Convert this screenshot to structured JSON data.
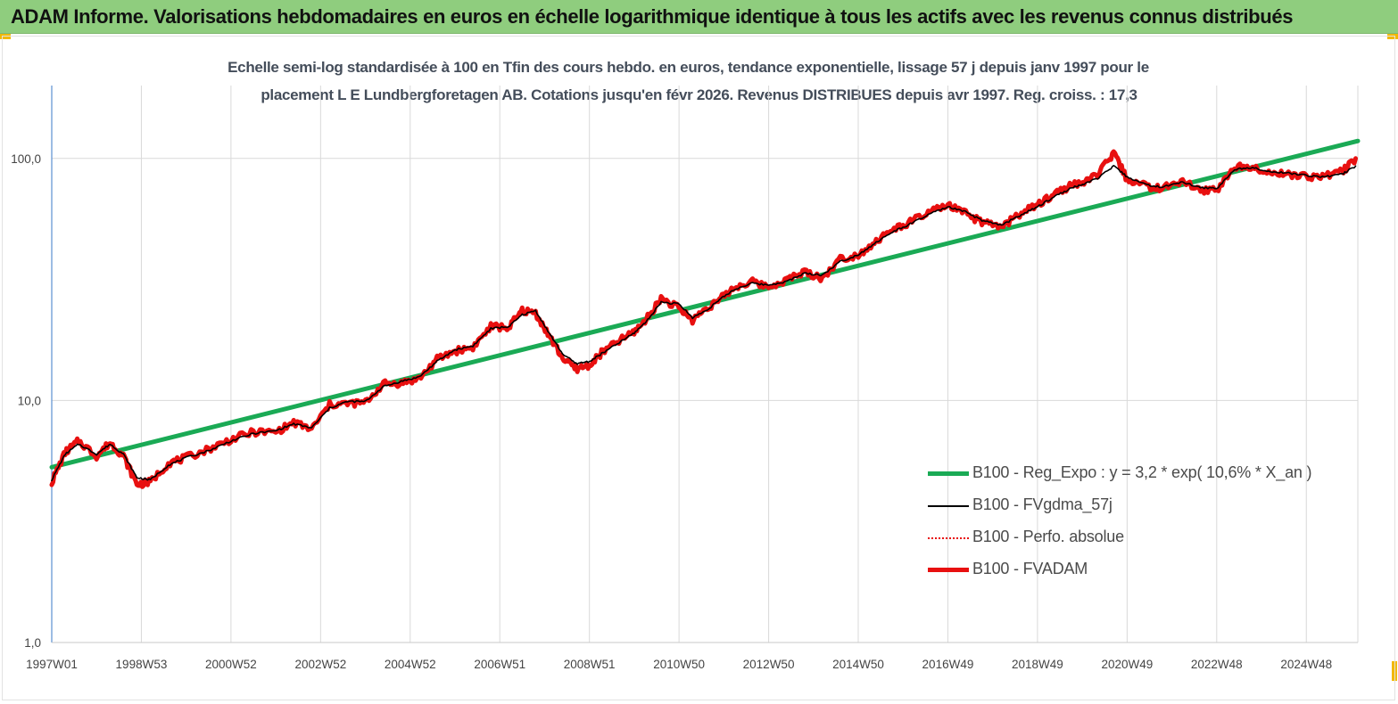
{
  "header": {
    "title": "ADAM Informe. Valorisations hebdomadaires en euros en échelle logarithmique identique à tous les actifs avec les revenus connus distribués",
    "background_color": "#8fcd7e",
    "accent_color": "#f2b800"
  },
  "chart_data": {
    "type": "line",
    "title": "Echelle semi-log standardisée à 100 en Tfin des cours hebdo. en euros, tendance exponentielle, lissage 57 j depuis janv 1997 pour le",
    "subtitle": "placement L E Lundbergforetagen AB. Cotations jusqu'en févr 2026. Revenus DISTRIBUES depuis avr 1997. Reg. croiss. : 17,3",
    "xlabel": "",
    "ylabel": "",
    "y_scale": "log",
    "ylim": [
      1,
      200
    ],
    "xlim": [
      1997.0,
      2026.15
    ],
    "grid": {
      "vertical": true,
      "horizontal": true
    },
    "legend_position": "bottom-right",
    "y_ticks": [
      {
        "value": 1,
        "label": "1,0"
      },
      {
        "value": 10,
        "label": "10,0"
      },
      {
        "value": 100,
        "label": "100,0"
      }
    ],
    "x_ticks": [
      {
        "value": 1997.0,
        "label": "1997W01"
      },
      {
        "value": 1999.0,
        "label": "1998W53"
      },
      {
        "value": 2001.0,
        "label": "2000W52"
      },
      {
        "value": 2003.0,
        "label": "2002W52"
      },
      {
        "value": 2005.0,
        "label": "2004W52"
      },
      {
        "value": 2007.0,
        "label": "2006W51"
      },
      {
        "value": 2009.0,
        "label": "2008W51"
      },
      {
        "value": 2011.0,
        "label": "2010W50"
      },
      {
        "value": 2013.0,
        "label": "2012W50"
      },
      {
        "value": 2015.0,
        "label": "2014W50"
      },
      {
        "value": 2017.0,
        "label": "2016W49"
      },
      {
        "value": 2019.0,
        "label": "2018W49"
      },
      {
        "value": 2021.0,
        "label": "2020W49"
      },
      {
        "value": 2023.0,
        "label": "2022W48"
      },
      {
        "value": 2025.0,
        "label": "2024W48"
      }
    ],
    "series": [
      {
        "name": "B100 - Reg_Expo : y = 3,2 * exp( 10,6% *  X_an )",
        "color": "#1aaa55",
        "style": "thick-solid",
        "x": [
          1997.0,
          2026.15
        ],
        "values": [
          5.3,
          118
        ]
      },
      {
        "name": "B100 - FVgdma_57j",
        "color": "#000000",
        "style": "thin-solid",
        "x": [
          1997.0,
          1997.3,
          1997.6,
          1998.0,
          1998.3,
          1998.6,
          1998.9,
          1999.2,
          1999.6,
          2000.0,
          2000.5,
          2001.0,
          2001.5,
          2002.0,
          2002.4,
          2002.8,
          2003.2,
          2003.6,
          2004.0,
          2004.4,
          2004.8,
          2005.2,
          2005.6,
          2006.0,
          2006.4,
          2006.8,
          2007.2,
          2007.5,
          2007.8,
          2008.1,
          2008.4,
          2008.7,
          2009.0,
          2009.3,
          2009.7,
          2010.0,
          2010.3,
          2010.6,
          2011.0,
          2011.3,
          2011.6,
          2011.9,
          2012.2,
          2012.6,
          2013.0,
          2013.4,
          2013.8,
          2014.2,
          2014.6,
          2015.0,
          2015.4,
          2015.8,
          2016.2,
          2016.6,
          2017.0,
          2017.4,
          2017.8,
          2018.2,
          2018.6,
          2019.0,
          2019.4,
          2019.8,
          2020.1,
          2020.4,
          2020.7,
          2021.0,
          2021.4,
          2021.8,
          2022.2,
          2022.6,
          2023.0,
          2023.4,
          2023.8,
          2024.2,
          2024.6,
          2025.0,
          2025.4,
          2025.8,
          2026.1
        ],
        "values": [
          4.7,
          6.0,
          6.6,
          6.0,
          6.6,
          6.0,
          4.8,
          4.7,
          5.4,
          5.8,
          6.2,
          6.8,
          7.3,
          7.5,
          8.0,
          7.7,
          9.3,
          9.9,
          9.9,
          11.4,
          12.0,
          12.5,
          14.5,
          16.2,
          16.8,
          19.8,
          20.2,
          22.6,
          23.5,
          19.0,
          15.6,
          14.2,
          14.5,
          15.7,
          17.5,
          19.0,
          21.5,
          25.5,
          25.0,
          22.0,
          23.5,
          26.0,
          28.5,
          30.5,
          30.0,
          31.0,
          33.5,
          33.0,
          37.5,
          40.0,
          45.0,
          50.0,
          54.0,
          59.0,
          63.0,
          60.0,
          55.0,
          53.0,
          58.0,
          63.0,
          70.0,
          76.0,
          79.0,
          84.0,
          93.0,
          84.0,
          78.0,
          76.0,
          80.0,
          76.0,
          75.0,
          90.0,
          92.0,
          88.0,
          87.0,
          85.0,
          84.0,
          86.0,
          93.0
        ]
      },
      {
        "name": "B100 - Perfo. absolue",
        "color": "#e81010",
        "style": "dotted",
        "x": [
          1997.0,
          1997.3,
          1997.6,
          1998.0,
          1998.3,
          1998.6,
          1998.9,
          1999.2,
          1999.6,
          2000.0,
          2000.5,
          2001.0,
          2001.5,
          2002.0,
          2002.4,
          2002.8,
          2003.2,
          2003.6,
          2004.0,
          2004.4,
          2004.8,
          2005.2,
          2005.6,
          2006.0,
          2006.4,
          2006.8,
          2007.2,
          2007.5,
          2007.8,
          2008.1,
          2008.4,
          2008.7,
          2009.0,
          2009.3,
          2009.7,
          2010.0,
          2010.3,
          2010.6,
          2011.0,
          2011.3,
          2011.6,
          2011.9,
          2012.2,
          2012.6,
          2013.0,
          2013.4,
          2013.8,
          2014.2,
          2014.6,
          2015.0,
          2015.4,
          2015.8,
          2016.2,
          2016.6,
          2017.0,
          2017.4,
          2017.8,
          2018.2,
          2018.6,
          2019.0,
          2019.4,
          2019.8,
          2020.1,
          2020.4,
          2020.7,
          2021.0,
          2021.4,
          2021.8,
          2022.2,
          2022.6,
          2023.0,
          2023.4,
          2023.8,
          2024.2,
          2024.6,
          2025.0,
          2025.4,
          2025.8,
          2026.1
        ],
        "values": [
          4.6,
          6.1,
          6.8,
          5.9,
          6.7,
          5.9,
          4.5,
          4.6,
          5.5,
          5.8,
          6.3,
          6.9,
          7.4,
          7.4,
          8.1,
          7.6,
          9.6,
          9.7,
          9.8,
          11.7,
          11.8,
          12.3,
          14.8,
          16.0,
          16.6,
          20.2,
          20.0,
          23.5,
          23.0,
          18.5,
          15.0,
          13.5,
          14.0,
          15.9,
          17.8,
          19.2,
          22.0,
          26.5,
          24.0,
          21.5,
          24.0,
          26.0,
          29.0,
          31.0,
          29.5,
          31.5,
          34.0,
          32.0,
          38.5,
          40.0,
          45.5,
          51.0,
          55.0,
          60.0,
          64.0,
          59.0,
          54.0,
          52.0,
          59.0,
          64.0,
          72.0,
          78.0,
          80.0,
          88.0,
          105.0,
          82.0,
          77.0,
          75.0,
          81.0,
          74.0,
          74.0,
          92.0,
          93.0,
          87.0,
          86.0,
          84.0,
          85.0,
          88.0,
          100.0
        ]
      },
      {
        "name": "B100 - FVADAM",
        "color": "#e81010",
        "style": "thick-solid",
        "x": [
          1997.0,
          1997.3,
          1997.6,
          1998.0,
          1998.3,
          1998.6,
          1998.9,
          1999.2,
          1999.6,
          2000.0,
          2000.5,
          2001.0,
          2001.5,
          2002.0,
          2002.4,
          2002.8,
          2003.2,
          2003.6,
          2004.0,
          2004.4,
          2004.8,
          2005.2,
          2005.6,
          2006.0,
          2006.4,
          2006.8,
          2007.2,
          2007.5,
          2007.8,
          2008.1,
          2008.4,
          2008.7,
          2009.0,
          2009.3,
          2009.7,
          2010.0,
          2010.3,
          2010.6,
          2011.0,
          2011.3,
          2011.6,
          2011.9,
          2012.2,
          2012.6,
          2013.0,
          2013.4,
          2013.8,
          2014.2,
          2014.6,
          2015.0,
          2015.4,
          2015.8,
          2016.2,
          2016.6,
          2017.0,
          2017.4,
          2017.8,
          2018.2,
          2018.6,
          2019.0,
          2019.4,
          2019.8,
          2020.1,
          2020.4,
          2020.7,
          2021.0,
          2021.4,
          2021.8,
          2022.2,
          2022.6,
          2023.0,
          2023.4,
          2023.8,
          2024.2,
          2024.6,
          2025.0,
          2025.4,
          2025.8,
          2026.1
        ],
        "values": [
          4.6,
          6.1,
          6.8,
          5.9,
          6.7,
          5.9,
          4.5,
          4.6,
          5.5,
          5.8,
          6.3,
          6.9,
          7.4,
          7.4,
          8.1,
          7.6,
          9.6,
          9.7,
          9.8,
          11.7,
          11.8,
          12.3,
          14.8,
          16.0,
          16.6,
          20.2,
          20.0,
          23.5,
          23.0,
          18.5,
          15.0,
          13.5,
          14.0,
          15.9,
          17.8,
          19.2,
          22.0,
          26.5,
          24.0,
          21.5,
          24.0,
          26.0,
          29.0,
          31.0,
          29.5,
          31.5,
          34.0,
          32.0,
          38.5,
          40.0,
          45.5,
          51.0,
          55.0,
          60.0,
          64.0,
          59.0,
          54.0,
          52.0,
          59.0,
          64.0,
          72.0,
          78.0,
          80.0,
          88.0,
          105.0,
          82.0,
          77.0,
          75.0,
          81.0,
          74.0,
          74.0,
          92.0,
          93.0,
          87.0,
          86.0,
          84.0,
          85.0,
          88.0,
          100.0
        ]
      }
    ]
  }
}
